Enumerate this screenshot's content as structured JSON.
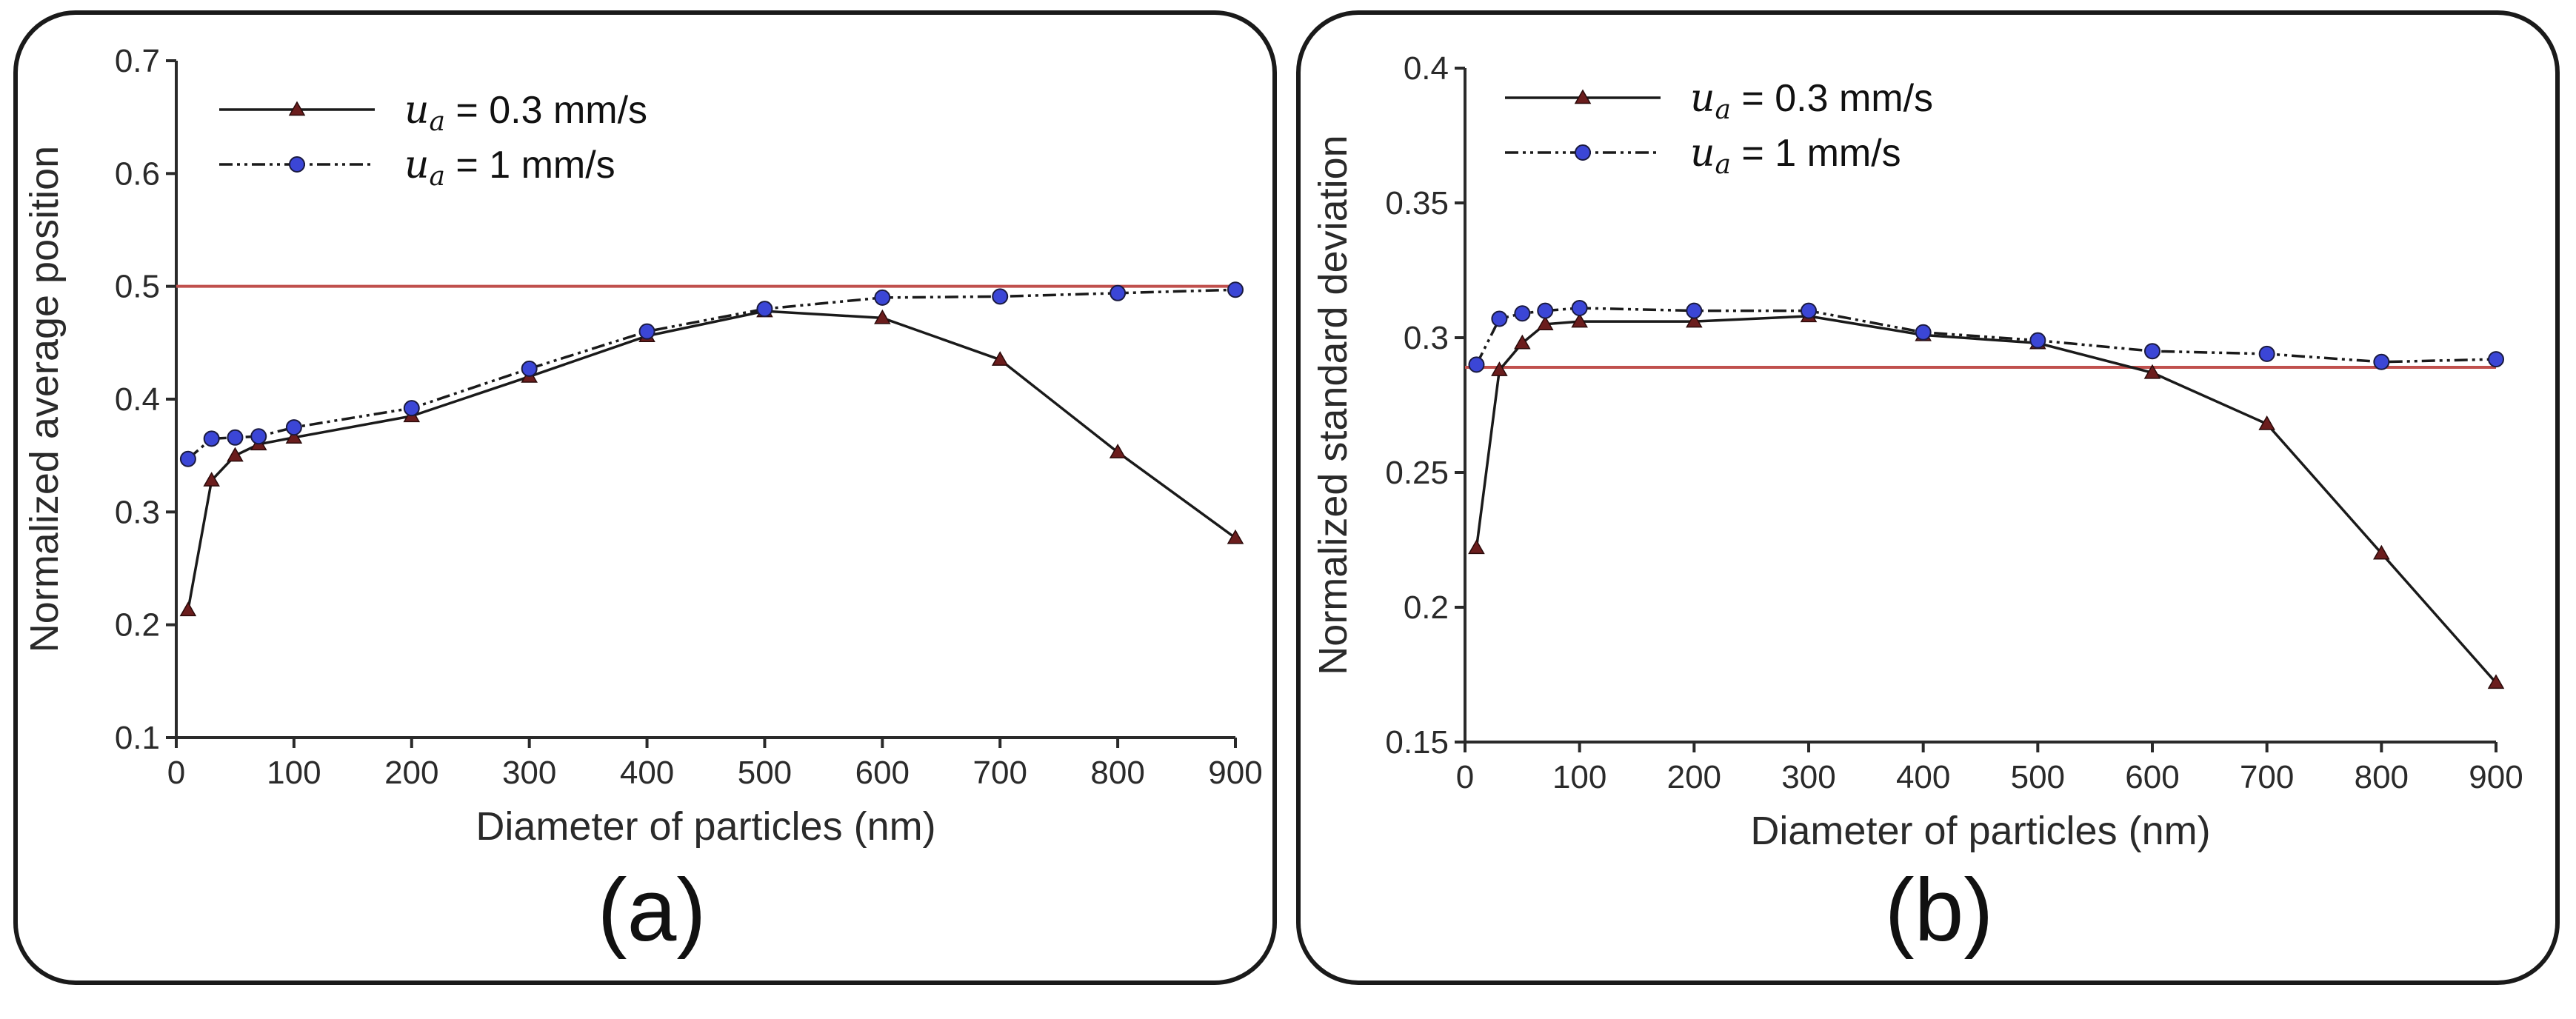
{
  "chart_data": [
    {
      "type": "line",
      "panel_label": "(a)",
      "title": "",
      "xlabel": "Diameter of particles (nm)",
      "ylabel": "Normalized average position",
      "xlim": [
        0,
        900
      ],
      "ylim": [
        0.1,
        0.7
      ],
      "xticks": [
        0,
        100,
        200,
        300,
        400,
        500,
        600,
        700,
        800,
        900
      ],
      "xtick_labels": [
        "0",
        "100",
        "200",
        "300",
        "400",
        "500",
        "600",
        "700",
        "800",
        "900"
      ],
      "yticks": [
        0.1,
        0.2,
        0.3,
        0.4,
        0.5,
        0.6,
        0.7
      ],
      "ytick_labels": [
        "0.1",
        "0.2",
        "0.3",
        "0.4",
        "0.5",
        "0.6",
        "0.7"
      ],
      "grid": false,
      "legend_position": "top-left",
      "reference_line": {
        "y": 0.5,
        "color": "#c0504d"
      },
      "series": [
        {
          "name": "u_a = 0.3 mm/s",
          "symbol": "u",
          "subscript": "a",
          "label_rest": " = 0.3 mm/s",
          "marker": "triangle",
          "line_style": "solid",
          "color": "#1a1a1a",
          "marker_color": "#6b1d1d",
          "x": [
            10,
            30,
            50,
            70,
            100,
            200,
            300,
            400,
            500,
            600,
            700,
            800,
            900
          ],
          "y": [
            0.213,
            0.328,
            0.35,
            0.36,
            0.366,
            0.385,
            0.42,
            0.456,
            0.478,
            0.472,
            0.435,
            0.353,
            0.277
          ]
        },
        {
          "name": "u_a = 1 mm/s",
          "symbol": "u",
          "subscript": "a",
          "label_rest": " = 1 mm/s",
          "marker": "circle",
          "line_style": "dashdot",
          "color": "#1a1a1a",
          "marker_color": "#3b46d6",
          "x": [
            10,
            30,
            50,
            70,
            100,
            200,
            300,
            400,
            500,
            600,
            700,
            800,
            900
          ],
          "y": [
            0.347,
            0.365,
            0.366,
            0.367,
            0.375,
            0.392,
            0.427,
            0.46,
            0.48,
            0.49,
            0.491,
            0.494,
            0.497
          ]
        }
      ]
    },
    {
      "type": "line",
      "panel_label": "(b)",
      "title": "",
      "xlabel": "Diameter of particles (nm)",
      "ylabel": "Normalized standard deviation",
      "xlim": [
        0,
        900
      ],
      "ylim": [
        0.15,
        0.4
      ],
      "xticks": [
        0,
        100,
        200,
        300,
        400,
        500,
        600,
        700,
        800,
        900
      ],
      "xtick_labels": [
        "0",
        "100",
        "200",
        "300",
        "400",
        "500",
        "600",
        "700",
        "800",
        "900"
      ],
      "yticks": [
        0.15,
        0.2,
        0.25,
        0.3,
        0.35,
        0.4
      ],
      "ytick_labels": [
        "0.15",
        "0.2",
        "0.25",
        "0.3",
        "0.35",
        "0.4"
      ],
      "grid": false,
      "legend_position": "top-left",
      "reference_line": {
        "y": 0.289,
        "color": "#c0504d"
      },
      "series": [
        {
          "name": "u_a = 0.3 mm/s",
          "symbol": "u",
          "subscript": "a",
          "label_rest": " = 0.3 mm/s",
          "marker": "triangle",
          "line_style": "solid",
          "color": "#1a1a1a",
          "marker_color": "#6b1d1d",
          "x": [
            10,
            30,
            50,
            70,
            100,
            200,
            300,
            400,
            500,
            600,
            700,
            800,
            900
          ],
          "y": [
            0.222,
            0.288,
            0.298,
            0.305,
            0.306,
            0.306,
            0.308,
            0.301,
            0.298,
            0.287,
            0.268,
            0.22,
            0.172
          ]
        },
        {
          "name": "u_a = 1 mm/s",
          "symbol": "u",
          "subscript": "a",
          "label_rest": " = 1 mm/s",
          "marker": "circle",
          "line_style": "dashdot",
          "color": "#1a1a1a",
          "marker_color": "#3b46d6",
          "x": [
            10,
            30,
            50,
            70,
            100,
            200,
            300,
            400,
            500,
            600,
            700,
            800,
            900
          ],
          "y": [
            0.29,
            0.307,
            0.309,
            0.31,
            0.311,
            0.31,
            0.31,
            0.302,
            0.299,
            0.295,
            0.294,
            0.291,
            0.292
          ]
        }
      ]
    }
  ]
}
